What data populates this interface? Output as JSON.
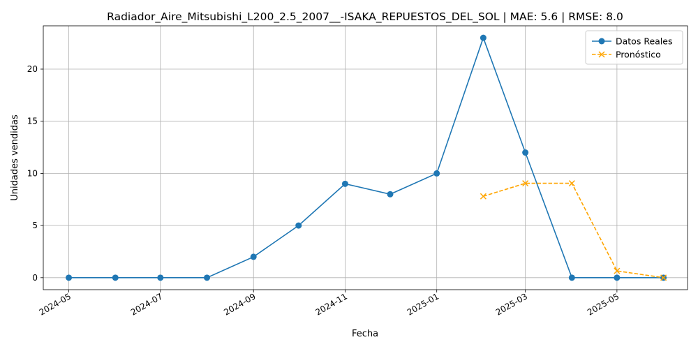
{
  "chart_data": {
    "type": "line",
    "title": "Radiador_Aire_Mitsubishi_L200_2.5_2007__-ISAKA_REPUESTOS_DEL_SOL | MAE: 5.6 | RMSE: 8.0",
    "xlabel": "Fecha",
    "ylabel": "Unidades vendidas",
    "grid": true,
    "legend_position": "top-right",
    "xlim": [
      "2024-04-14",
      "2025-06-17"
    ],
    "ylim": [
      -1.15,
      24.15
    ],
    "x_ticks": [
      "2024-05-01",
      "2024-07-01",
      "2024-09-01",
      "2024-11-01",
      "2025-01-01",
      "2025-03-01",
      "2025-05-01"
    ],
    "x_tick_labels": [
      "2024-05",
      "2024-07",
      "2024-09",
      "2024-11",
      "2025-01",
      "2025-03",
      "2025-05"
    ],
    "y_ticks": [
      0,
      5,
      10,
      15,
      20
    ],
    "y_tick_labels": [
      "0",
      "5",
      "10",
      "15",
      "20"
    ],
    "series": [
      {
        "name": "Datos Reales",
        "color": "#1f77b4",
        "line_style": "solid",
        "marker": "circle",
        "x": [
          "2024-05-01",
          "2024-06-01",
          "2024-07-01",
          "2024-08-01",
          "2024-09-01",
          "2024-10-01",
          "2024-11-01",
          "2024-12-01",
          "2025-01-01",
          "2025-02-01",
          "2025-03-01",
          "2025-04-01",
          "2025-05-01",
          "2025-06-01"
        ],
        "values": [
          0,
          0,
          0,
          0,
          2,
          5,
          9,
          8,
          10,
          23,
          12,
          0,
          0,
          0
        ]
      },
      {
        "name": "Pronóstico",
        "color": "#ffa500",
        "line_style": "dashed",
        "marker": "x",
        "x": [
          "2025-02-01",
          "2025-03-01",
          "2025-04-01",
          "2025-05-01",
          "2025-06-01"
        ],
        "values": [
          7.8,
          9.05,
          9.05,
          0.65,
          0.0
        ]
      }
    ]
  }
}
